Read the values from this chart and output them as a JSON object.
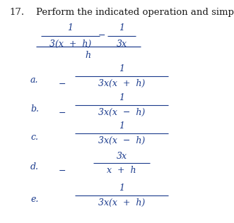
{
  "background_color": "#ffffff",
  "problem_number": "17.",
  "problem_text": "Perform the indicated operation and simplify.",
  "text_color": "#1a3a8c",
  "label_color": "#1a3a8c",
  "title_color": "#1a1a1a",
  "fs_title": 9.5,
  "fs_math": 9.0,
  "main_expr": {
    "left_num": "1",
    "left_den": "3(x  +  h)",
    "right_num": "1",
    "right_den": "3x",
    "main_den": "h"
  },
  "options": [
    {
      "label": "a.",
      "sign": "−",
      "num": "1",
      "den": "3x(x  +  h)"
    },
    {
      "label": "b.",
      "sign": "−",
      "num": "1",
      "den": "3x(x  −  h)"
    },
    {
      "label": "c.",
      "sign": "",
      "num": "1",
      "den": "3x(x  −  h)"
    },
    {
      "label": "d.",
      "sign": "−",
      "num": "3x",
      "den": "x  +  h"
    },
    {
      "label": "e.",
      "sign": "",
      "num": "1",
      "den": "3x(x  +  h)"
    }
  ]
}
